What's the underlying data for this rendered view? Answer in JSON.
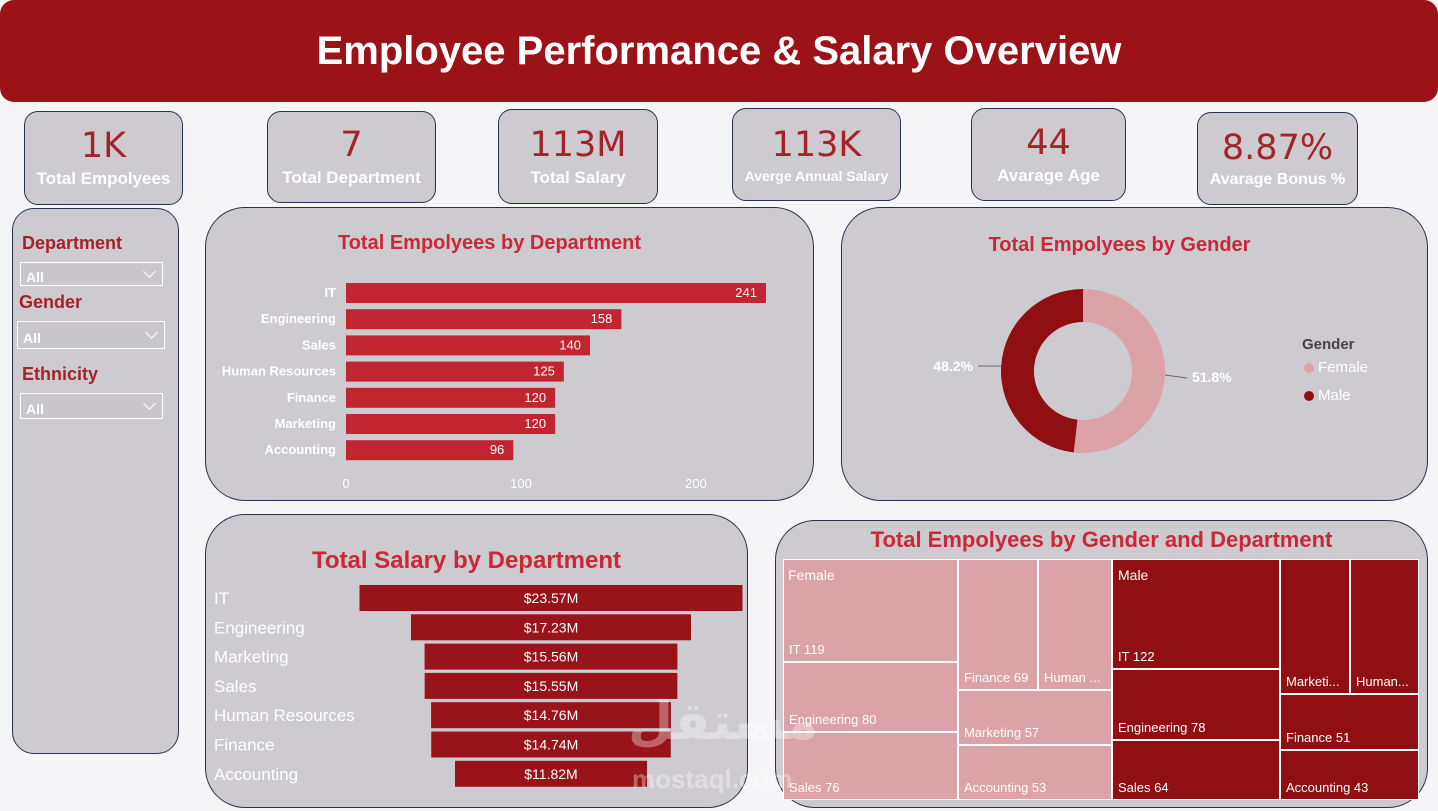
{
  "header": {
    "title": "Employee Performance & Salary Overview"
  },
  "kpis": [
    {
      "value": "1K",
      "label": "Total Empolyees"
    },
    {
      "value": "7",
      "label": "Total Department"
    },
    {
      "value": "113M",
      "label": "Total Salary"
    },
    {
      "value": "113K",
      "label": "Averge Annual Salary"
    },
    {
      "value": "44",
      "label": "Avarage Age"
    },
    {
      "value": "8.87%",
      "label": "Avarage Bonus %"
    }
  ],
  "slicers": [
    {
      "title": "Department",
      "value": "All"
    },
    {
      "title": "Gender",
      "value": "All"
    },
    {
      "title": "Ethnicity",
      "value": "All"
    }
  ],
  "colors": {
    "header": "#9b1219",
    "bar": "#c02530",
    "salary_bar": "#98131a",
    "female": "#dba2a7",
    "male": "#8f0f12",
    "title": "#c8283a"
  },
  "chart_data": [
    {
      "type": "bar",
      "title": "Total Empolyees by Department",
      "categories": [
        "IT",
        "Engineering",
        "Sales",
        "Human Resources",
        "Finance",
        "Marketing",
        "Accounting"
      ],
      "values": [
        241,
        158,
        140,
        125,
        120,
        120,
        96
      ],
      "xticks": [
        0,
        100,
        200
      ],
      "xlim": [
        0,
        241
      ]
    },
    {
      "type": "pie",
      "title": "Total Empolyees by Gender",
      "legend_title": "Gender",
      "slices": [
        {
          "label": "Female",
          "value": 51.8,
          "text": "51.8%"
        },
        {
          "label": "Male",
          "value": 48.2,
          "text": "48.2%"
        }
      ]
    },
    {
      "type": "bar",
      "title": "Total Salary by Department",
      "categories": [
        "IT",
        "Engineering",
        "Marketing",
        "Sales",
        "Human Resources",
        "Finance",
        "Accounting"
      ],
      "values": [
        23.57,
        17.23,
        15.56,
        15.55,
        14.76,
        14.74,
        11.82
      ],
      "labels": [
        "$23.57M",
        "$17.23M",
        "$15.56M",
        "$15.55M",
        "$14.76M",
        "$14.74M",
        "$11.82M"
      ]
    },
    {
      "type": "treemap",
      "title": "Total Empolyees by Gender and Department",
      "groups": [
        {
          "name": "Female",
          "items": [
            {
              "label": "IT 119",
              "value": 119
            },
            {
              "label": "Engineering 80",
              "value": 80
            },
            {
              "label": "Sales 76",
              "value": 76
            },
            {
              "label": "Finance 69",
              "value": 69
            },
            {
              "label": "Human ...",
              "value": 66
            },
            {
              "label": "Marketing 57",
              "value": 57
            },
            {
              "label": "Accounting 53",
              "value": 53
            }
          ]
        },
        {
          "name": "Male",
          "items": [
            {
              "label": "IT 122",
              "value": 122
            },
            {
              "label": "Engineering 78",
              "value": 78
            },
            {
              "label": "Sales 64",
              "value": 64
            },
            {
              "label": "Marketi...",
              "value": 63
            },
            {
              "label": "Human...",
              "value": 59
            },
            {
              "label": "Finance 51",
              "value": 51
            },
            {
              "label": "Accounting 43",
              "value": 43
            }
          ]
        }
      ]
    }
  ],
  "watermark": {
    "arabic": "مستقل",
    "latin": "mostaql.com"
  }
}
